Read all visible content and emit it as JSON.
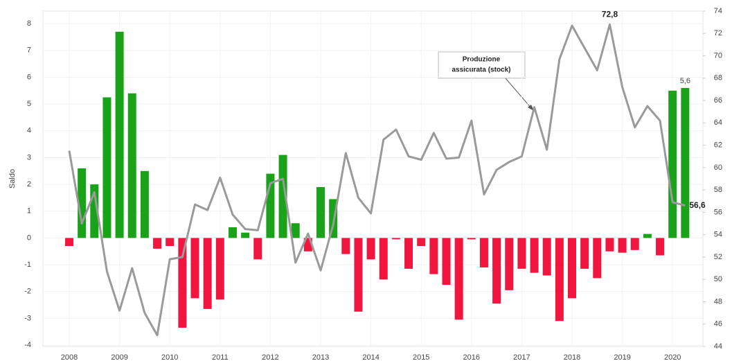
{
  "chart_data": {
    "type": "bar",
    "y_label": "Saldo",
    "annotation": [
      "Produzione",
      "assicurata (stock)"
    ],
    "categories": [
      "2008",
      null,
      null,
      null,
      "2009",
      null,
      null,
      null,
      "2010",
      null,
      null,
      null,
      "2011",
      null,
      null,
      null,
      "2012",
      null,
      null,
      null,
      "2013",
      null,
      null,
      null,
      "2014",
      null,
      null,
      null,
      "2015",
      null,
      null,
      null,
      "2016",
      null,
      null,
      null,
      "2017",
      null,
      null,
      null,
      "2018",
      null,
      null,
      null,
      "2019",
      null,
      null,
      null,
      "2020",
      null
    ],
    "series": [
      {
        "type": "bar",
        "color": "#1aa31a",
        "negative_color": "#f0163f",
        "values": [
          -0.3,
          2.6,
          2.0,
          5.25,
          7.7,
          5.4,
          2.5,
          -0.4,
          -0.3,
          -3.35,
          -2.25,
          -2.65,
          -2.3,
          0.4,
          0.2,
          -0.8,
          2.4,
          3.1,
          0.55,
          -0.5,
          1.9,
          1.45,
          -0.6,
          -2.75,
          -0.8,
          -1.55,
          -0.05,
          -1.15,
          -0.3,
          -1.35,
          -1.75,
          -3.05,
          -0.05,
          -1.1,
          -2.45,
          -1.95,
          -1.15,
          -1.3,
          -1.4,
          -3.1,
          -2.25,
          -1.15,
          -1.5,
          -0.5,
          -0.55,
          -0.45,
          0.15,
          -0.65,
          5.5,
          5.6
        ],
        "value_labels": [
          null,
          null,
          null,
          null,
          null,
          null,
          null,
          null,
          null,
          null,
          null,
          null,
          null,
          null,
          null,
          null,
          null,
          null,
          null,
          null,
          null,
          null,
          null,
          null,
          null,
          null,
          null,
          null,
          null,
          null,
          null,
          null,
          null,
          null,
          null,
          null,
          null,
          null,
          null,
          null,
          null,
          null,
          null,
          null,
          null,
          null,
          null,
          null,
          null,
          "5,6"
        ]
      },
      {
        "type": "line",
        "axis": "y2",
        "color": "#9a9a9a",
        "values": [
          61.5,
          55,
          57.8,
          50.7,
          47.2,
          51,
          47,
          45,
          51.8,
          52,
          56.7,
          56.2,
          59.1,
          55.8,
          54.5,
          54.4,
          58.6,
          59,
          51.5,
          54.1,
          50.8,
          54.9,
          61.3,
          57.3,
          55.9,
          62.5,
          63.4,
          61,
          60.7,
          63.1,
          60.8,
          60.9,
          64.2,
          57.6,
          59.8,
          60.5,
          61,
          65.4,
          61.6,
          69.7,
          72.7,
          70.7,
          68.7,
          72.8,
          67.2,
          63.6,
          65.5,
          64.2,
          56.9,
          56.6
        ],
        "value_labels": [
          null,
          null,
          null,
          null,
          null,
          null,
          null,
          null,
          null,
          null,
          null,
          null,
          null,
          null,
          null,
          null,
          null,
          null,
          null,
          null,
          null,
          null,
          null,
          null,
          null,
          null,
          null,
          null,
          null,
          null,
          null,
          null,
          null,
          null,
          null,
          null,
          null,
          null,
          null,
          null,
          null,
          null,
          null,
          "72,8",
          null,
          null,
          null,
          null,
          null,
          "56,6"
        ]
      }
    ],
    "ylim": [
      -4.05,
      8.47
    ],
    "yticks": [
      -4,
      -3,
      -2,
      -1,
      0,
      1,
      2,
      3,
      4,
      5,
      6,
      7,
      8
    ],
    "y2lim": [
      44,
      74
    ],
    "y2ticks": [
      44,
      46,
      48,
      50,
      52,
      54,
      56,
      58,
      60,
      62,
      64,
      66,
      68,
      70,
      72,
      74
    ],
    "grid": true
  }
}
